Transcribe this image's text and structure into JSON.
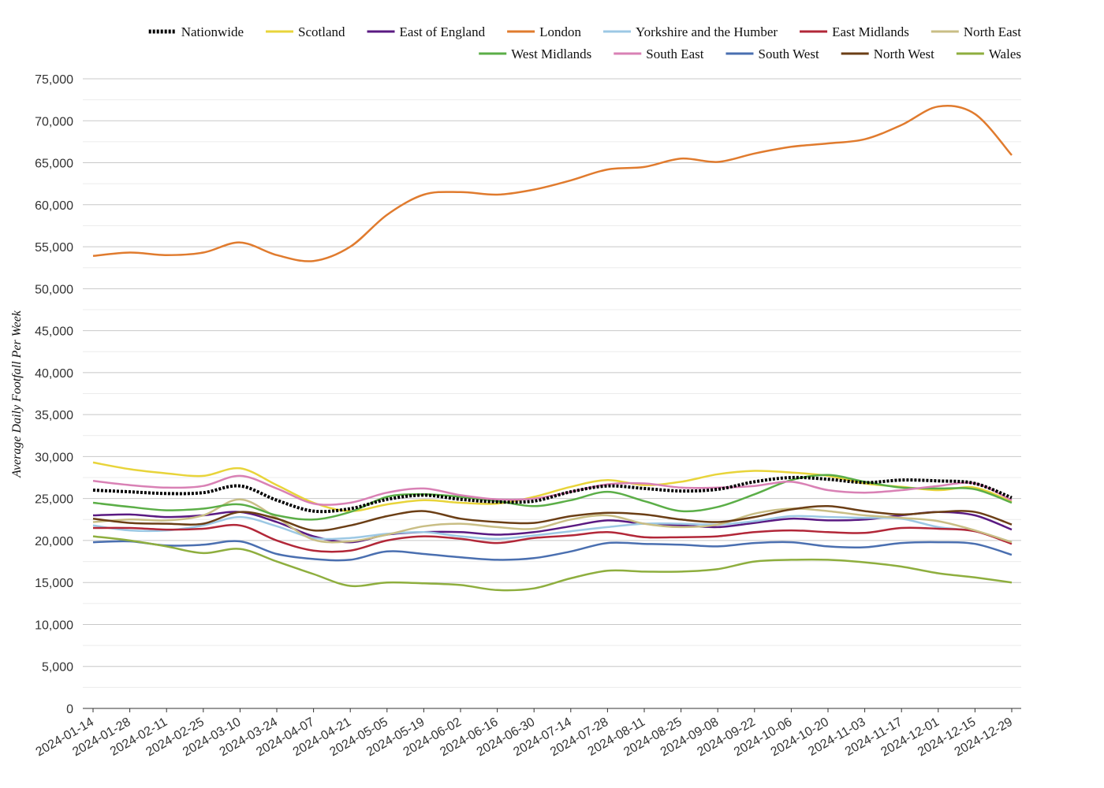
{
  "chart_data": {
    "type": "line",
    "title": "",
    "xlabel": "",
    "ylabel": "Average Daily Footfall Per Week",
    "ylim": [
      0,
      75000
    ],
    "y_ticks": [
      0,
      5000,
      10000,
      15000,
      20000,
      25000,
      30000,
      35000,
      40000,
      45000,
      50000,
      55000,
      60000,
      65000,
      70000,
      75000
    ],
    "y_tick_labels": [
      "0",
      "5,000",
      "10,000",
      "15,000",
      "20,000",
      "25,000",
      "30,000",
      "35,000",
      "40,000",
      "45,000",
      "50,000",
      "55,000",
      "60,000",
      "65,000",
      "70,000",
      "75,000"
    ],
    "x_tick_labels": [
      "2024-01-14",
      "2024-01-28",
      "2024-02-11",
      "2024-02-25",
      "2024-03-10",
      "2024-03-24",
      "2024-04-07",
      "2024-04-21",
      "2024-05-05",
      "2024-05-19",
      "2024-06-02",
      "2024-06-16",
      "2024-06-30",
      "2024-07-14",
      "2024-07-28",
      "2024-08-11",
      "2024-08-25",
      "2024-09-08",
      "2024-09-22",
      "2024-10-06",
      "2024-10-20",
      "2024-11-03",
      "2024-11-17",
      "2024-12-01",
      "2024-12-15",
      "2024-12-29"
    ],
    "grid": true,
    "legend_position": "top-right",
    "x": [
      "2024-01-14",
      "2024-01-28",
      "2024-02-11",
      "2024-02-25",
      "2024-03-10",
      "2024-03-24",
      "2024-04-07",
      "2024-04-21",
      "2024-05-05",
      "2024-05-19",
      "2024-06-02",
      "2024-06-16",
      "2024-06-30",
      "2024-07-14",
      "2024-07-28",
      "2024-08-11",
      "2024-08-25",
      "2024-09-08",
      "2024-09-22",
      "2024-10-06",
      "2024-10-20",
      "2024-11-03",
      "2024-11-17",
      "2024-12-01",
      "2024-12-15",
      "2024-12-29"
    ],
    "series": [
      {
        "name": "Nationwide",
        "color": "#000000",
        "dash": true,
        "values": [
          26000,
          25800,
          25600,
          25700,
          26500,
          24800,
          23500,
          23800,
          24900,
          25400,
          24900,
          24600,
          24700,
          25800,
          26500,
          26200,
          25900,
          26100,
          27000,
          27500,
          27300,
          26900,
          27200,
          27100,
          26800,
          25100
        ]
      },
      {
        "name": "Scotland",
        "color": "#E8D43A",
        "values": [
          29300,
          28500,
          28000,
          27700,
          28600,
          26600,
          24500,
          23500,
          24300,
          24800,
          24500,
          24400,
          25200,
          26400,
          27200,
          26600,
          27000,
          27900,
          28300,
          28100,
          27700,
          26800,
          26400,
          26000,
          26300,
          24600
        ]
      },
      {
        "name": "East of England",
        "color": "#5A1A82",
        "values": [
          23000,
          23100,
          22800,
          23000,
          23400,
          22200,
          20500,
          19800,
          20700,
          21000,
          21000,
          20700,
          21000,
          21700,
          22400,
          22000,
          21800,
          21600,
          22100,
          22600,
          22400,
          22500,
          23000,
          23400,
          23000,
          21300
        ]
      },
      {
        "name": "London",
        "color": "#E07B2E",
        "values": [
          53900,
          54300,
          54000,
          54300,
          55500,
          54000,
          53300,
          55000,
          58800,
          61200,
          61500,
          61200,
          61800,
          62900,
          64200,
          64500,
          65500,
          65100,
          66100,
          66900,
          67300,
          67800,
          69500,
          71700,
          70800,
          65900
        ]
      },
      {
        "name": "Yorkshire and the Humber",
        "color": "#9CC8E4",
        "values": [
          21800,
          21200,
          21200,
          21800,
          22800,
          21700,
          20300,
          20300,
          20800,
          21000,
          20500,
          20200,
          20600,
          21100,
          21600,
          22000,
          22000,
          21900,
          22300,
          22900,
          22800,
          22700,
          22600,
          21600,
          21100,
          19800
        ]
      },
      {
        "name": "East Midlands",
        "color": "#B22738",
        "values": [
          21500,
          21500,
          21300,
          21400,
          21800,
          20000,
          18800,
          18800,
          20000,
          20500,
          20200,
          19700,
          20300,
          20600,
          21000,
          20400,
          20400,
          20500,
          21000,
          21200,
          21000,
          20900,
          21500,
          21400,
          21100,
          19600
        ]
      },
      {
        "name": "North East",
        "color": "#C9BE85",
        "values": [
          22200,
          22500,
          22400,
          23000,
          24900,
          22700,
          20100,
          19900,
          20700,
          21700,
          22000,
          21600,
          21400,
          22500,
          23000,
          22000,
          21600,
          21900,
          23200,
          23800,
          23500,
          23000,
          22700,
          22300,
          21200,
          19800
        ]
      },
      {
        "name": "West Midlands",
        "color": "#5BAE47",
        "values": [
          24500,
          24000,
          23600,
          23800,
          24300,
          23000,
          22500,
          23400,
          25200,
          25500,
          25200,
          24700,
          24100,
          24800,
          25800,
          24700,
          23500,
          24000,
          25500,
          27200,
          27800,
          27000,
          26300,
          26200,
          26100,
          24500
        ]
      },
      {
        "name": "South East",
        "color": "#D981B5",
        "values": [
          27100,
          26600,
          26300,
          26500,
          27700,
          26200,
          24400,
          24500,
          25700,
          26200,
          25400,
          24900,
          25000,
          25800,
          26700,
          26800,
          26300,
          26300,
          26500,
          27000,
          26000,
          25700,
          26000,
          26500,
          26800,
          24800
        ]
      },
      {
        "name": "South West",
        "color": "#4A6FB0",
        "values": [
          19800,
          19900,
          19400,
          19500,
          19900,
          18400,
          17800,
          17700,
          18700,
          18400,
          18000,
          17700,
          17900,
          18700,
          19700,
          19600,
          19500,
          19300,
          19700,
          19800,
          19300,
          19200,
          19700,
          19800,
          19600,
          18300
        ]
      },
      {
        "name": "North West",
        "color": "#6B3E15",
        "values": [
          22600,
          22100,
          22000,
          22000,
          23400,
          22600,
          21200,
          21800,
          22900,
          23500,
          22600,
          22200,
          22100,
          22900,
          23300,
          23100,
          22500,
          22200,
          22800,
          23700,
          24100,
          23500,
          23100,
          23400,
          23400,
          21900
        ]
      },
      {
        "name": "Wales",
        "color": "#8EAE3E",
        "values": [
          20500,
          20000,
          19300,
          18500,
          19000,
          17500,
          16000,
          14600,
          15000,
          14900,
          14700,
          14100,
          14300,
          15500,
          16400,
          16300,
          16300,
          16600,
          17500,
          17700,
          17700,
          17400,
          16900,
          16100,
          15600,
          15000
        ]
      }
    ]
  }
}
